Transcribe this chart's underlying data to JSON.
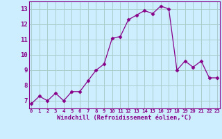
{
  "x": [
    0,
    1,
    2,
    3,
    4,
    5,
    6,
    7,
    8,
    9,
    10,
    11,
    12,
    13,
    14,
    15,
    16,
    17,
    18,
    19,
    20,
    21,
    22,
    23
  ],
  "y": [
    6.8,
    7.3,
    7.0,
    7.5,
    7.0,
    7.6,
    7.6,
    8.3,
    9.0,
    9.4,
    11.1,
    11.2,
    12.3,
    12.6,
    12.9,
    12.7,
    13.2,
    13.0,
    9.0,
    9.6,
    9.2,
    9.6,
    8.5,
    8.5
  ],
  "ylim": [
    6.5,
    13.5
  ],
  "xlim": [
    -0.3,
    23.3
  ],
  "yticks": [
    7,
    8,
    9,
    10,
    11,
    12,
    13
  ],
  "xtick_labels": [
    "0",
    "1",
    "2",
    "3",
    "4",
    "5",
    "6",
    "7",
    "8",
    "9",
    "10",
    "11",
    "12",
    "13",
    "14",
    "15",
    "16",
    "17",
    "18",
    "19",
    "20",
    "21",
    "22",
    "23"
  ],
  "xlabel": "Windchill (Refroidissement éolien,°C)",
  "line_color": "#880088",
  "marker": "D",
  "marker_size": 2.5,
  "background_color": "#cceeff",
  "grid_color": "#aacccc",
  "spine_color": "#880088",
  "xtick_fontsize": 5.2,
  "ytick_fontsize": 6.5,
  "xlabel_fontsize": 6.2
}
